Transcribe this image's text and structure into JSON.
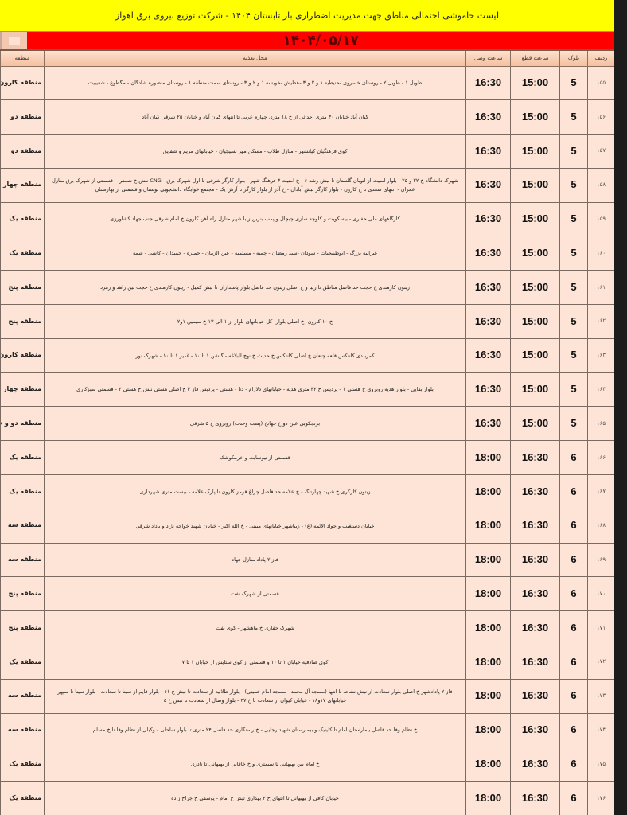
{
  "title": "لیست خاموشی احتمالی مناطق جهت مدیریت اضطراری بار تابستان ۱۴۰۴ - شرکت توزیع نیروی برق اهواز",
  "date": "۱۴۰۴/۰۵/۱۷",
  "columns": {
    "row": "ردیف",
    "block": "بلوک",
    "cut": "ساعت قطع",
    "connect": "ساعت وصل",
    "location": "محل تغذیه",
    "region": "منطقه"
  },
  "rows": [
    {
      "row": "۱۵۵",
      "block": "5",
      "cut": "15:00",
      "connect": "16:30",
      "location": "طویل ۱ - طویل ۲ - روستای خسروی -حنیطیه ۱ و ۲ و ۳ -عطیش -خویسه ۱ و ۲ و ۳ - روستای سمت منطقه ۱ - روستای منصوره شادگان - مگطوع - شعیبیت",
      "region": "منطقه کارون و ب"
    },
    {
      "row": "۱۵۶",
      "block": "5",
      "cut": "15:00",
      "connect": "16:30",
      "location": "کیان آباد خیابان ۳۰ متری احداثی از خ ۱۸ متری چهارم غربی تا انتهای کیان آباد و خیابان ۲۵ شرقی کیان آباد",
      "region": "منطقه دو"
    },
    {
      "row": "۱۵۷",
      "block": "5",
      "cut": "15:00",
      "connect": "16:30",
      "location": "کوی فرهنگیان کیانشهر - منازل طلاب - مسکن مهر بسیجیان - خیابانهای مریم و شقایق",
      "region": "منطقه دو"
    },
    {
      "row": "۱۵۸",
      "block": "5",
      "cut": "15:00",
      "connect": "16:30",
      "location": "شهرک دانشگاه خ ۲۲ و ۲۵ - بلوار امنیت از اتوبان گلستان تا نبش رشد ۶ - خ امنیت ۳ فرهنگ شهر - بلوار کارگر شرقی تا اول شهرک برق - CNG نبش خ شمس - قسمتی از شهرک برق منازل عمران - انتهای سعدی تا خ کارون - بلوار کارگر نبش آبادان - خ آذر از بلوار کارگر تا آرش یک - مجتمع خوابگاه دانشجویی بوستان و قسمتی از بهارستان",
      "region": "منطقه چهار"
    },
    {
      "row": "۱۵۹",
      "block": "5",
      "cut": "15:00",
      "connect": "16:30",
      "location": "کارگاههای ملی حفاری - بیسکویت و کلوچه سازی چیچال و پمپ بنزین زیبا شهر منازل راه آهن کارون خ امام شرقی جنب جهاد کشاورزی",
      "region": "منطقه یک"
    },
    {
      "row": "۱۶۰",
      "block": "5",
      "cut": "15:00",
      "connect": "16:30",
      "location": "غیزانیه بزرگ - ابوطبیخیات - سودان -سید رمضان - چمبه - مسلمیه - عین الزمان - حمیره - حمیدان - کاشی - شمه",
      "region": "منطقه یک"
    },
    {
      "row": "۱۶۱",
      "block": "5",
      "cut": "15:00",
      "connect": "16:30",
      "location": "زیتون کارمندی خ حجت حد فاصل مناطق تا زیبا و خ اصلی زیتون حد فاصل بلوار پاسداران تا نبش کمیل - زیتون کارمندی خ حجت بین زاهد و زمرد",
      "region": "منطقه پنج"
    },
    {
      "row": "۱۶۲",
      "block": "5",
      "cut": "15:00",
      "connect": "16:30",
      "location": "خ ۱۰ کارون- خ اصلی بلوار -کل خیابانهای بلوار از ۱ الی ۱۳ خ سیمین ۱و۲",
      "region": "منطقه پنج"
    },
    {
      "row": "۱۶۳",
      "block": "5",
      "cut": "15:00",
      "connect": "16:30",
      "location": "کمربندی کانتکس قلعه چنعان خ اصلی کانتکس خ حدیث خ نهج البلاغه - گلشن ۱ تا ۱۰ - غدیر ۱ تا ۱۰ - شهرک نور",
      "region": "منطقه کارون"
    },
    {
      "row": "۱۶۴",
      "block": "5",
      "cut": "15:00",
      "connect": "16:30",
      "location": "بلوار بقایی - بلوار هدیه روبروی خ هستی ۱ - پردیس خ ۳۲ متری هدیه - خیابانهای دلارام - دنا - هستی - پردیس فاز ۳ خ اصلی هستی نبش خ هستی ۲ - قسمتی سبزکاری",
      "region": "منطقه چهار"
    },
    {
      "row": "۱۶۵",
      "block": "5",
      "cut": "15:00",
      "connect": "16:30",
      "location": "برنجکوبی عین دو خ جهانخ (پست وحدت) روبروی خ ۵ شرقی",
      "region": "منطقه دو و علو"
    },
    {
      "row": "۱۶۶",
      "block": "6",
      "cut": "16:30",
      "connect": "18:00",
      "location": "قسمتی از نیوسایت و خرمکوشک",
      "region": "منطقه یک"
    },
    {
      "row": "۱۶۷",
      "block": "6",
      "cut": "16:30",
      "connect": "18:00",
      "location": "زیتون کارگری خ شهید چهارتنگ - خ علامه حد فاصل چراغ قرمز کارون تا پارک علامه - بیست متری شهرداری",
      "region": "منطقه یک"
    },
    {
      "row": "۱۶۸",
      "block": "6",
      "cut": "16:30",
      "connect": "18:00",
      "location": "خیابان دستغیب و جواد الائمه (ع) - زیباشهر خیابانهای مبینی - خ الله اکبر - خیابان شهید خواجه نژاد و یاداد شرقی",
      "region": "منطقه سه"
    },
    {
      "row": "۱۶۹",
      "block": "6",
      "cut": "16:30",
      "connect": "18:00",
      "location": "فاز ۲ پاداد منازل جهاد",
      "region": "منطقه سه"
    },
    {
      "row": "۱۷۰",
      "block": "6",
      "cut": "16:30",
      "connect": "18:00",
      "location": "قسمتی از شهرک نفت",
      "region": "منطقه پنج"
    },
    {
      "row": "۱۷۱",
      "block": "6",
      "cut": "16:30",
      "connect": "18:00",
      "location": "شهرک حفاری خ ماهشهر - کوی نفت",
      "region": "منطقه پنج"
    },
    {
      "row": "۱۷۲",
      "block": "6",
      "cut": "16:30",
      "connect": "18:00",
      "location": "کوی صادقیه خیابان ۱ تا ۱۰ و قسمتی از کوی ستایش از خیابان ۱ تا ۷",
      "region": "منطقه یک"
    },
    {
      "row": "۱۷۳",
      "block": "6",
      "cut": "16:30",
      "connect": "18:00",
      "location": "فاز ۲ پادادشهر خ اصلی بلوار سعادت از نبش نشاط تا انتها (مسجد آل محمد - مسجد امام خمینی) - بلوار طلائیه از سعادت تا نبش خ ۶۱ - بلوار قایم از سینا تا سعادت - بلوار سینا تا سپهر خیابانهای ۱۷و۱۸ - خیابان کیوان از سعادت تا خ ۴۷ - بلوار وصال از سعادت تا نبش خ ۵",
      "region": "منطقه سه"
    },
    {
      "row": "۱۷۴",
      "block": "6",
      "cut": "16:30",
      "connect": "18:00",
      "location": "خ نظام وفا حد فاصل بیمارستان امام تا کلینیک و بیمارستان شهید رجایی - خ رستگاری حد فاصل ۲۴ متری تا بلوار ساحلی - وکیلی از نظام وفا تا خ مسلم",
      "region": "منطقه سه"
    },
    {
      "row": "۱۷۵",
      "block": "6",
      "cut": "16:30",
      "connect": "18:00",
      "location": "خ امام بین بهبهانی تا سیمتری و خ خاقانی از بهبهانی تا نادری",
      "region": "منطقه یک"
    },
    {
      "row": "۱۷۶",
      "block": "6",
      "cut": "16:30",
      "connect": "18:00",
      "location": "خیابان کافی از بهبهانی تا انتهای خ ۲ بهداری تیش خ امام - یوسفی خ جراح زاده",
      "region": "منطقه یک"
    }
  ]
}
